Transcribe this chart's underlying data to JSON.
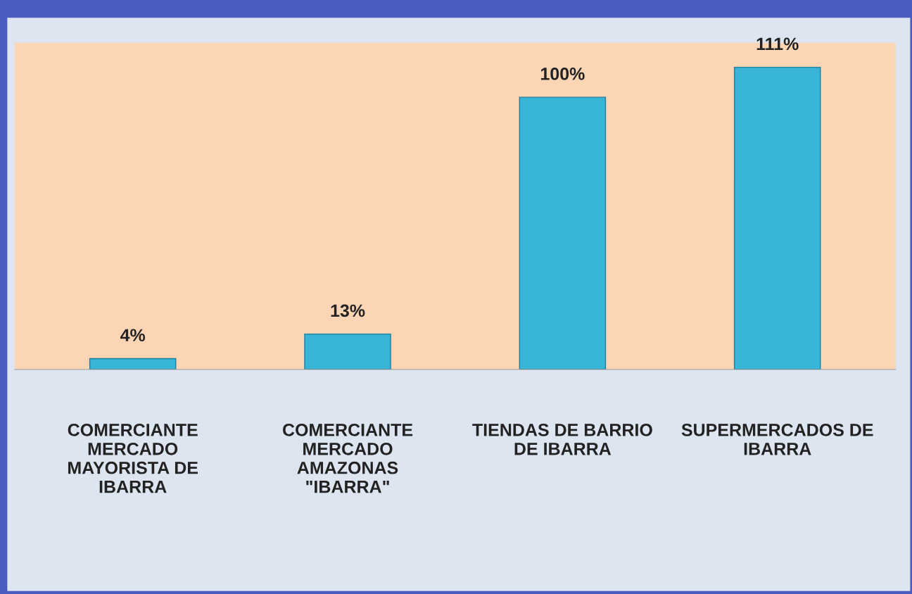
{
  "chart_data": {
    "type": "bar",
    "categories": [
      "COMERCIANTE\nMERCADO\nMAYORISTA DE\nIBARRA",
      "COMERCIANTE\nMERCADO\nAMAZONAS\n\"IBARRA\"",
      "TIENDAS DE BARRIO\nDE IBARRA",
      "SUPERMERCADOS DE\nIBARRA"
    ],
    "values": [
      4,
      13,
      100,
      111
    ],
    "value_labels": [
      "4%",
      "13%",
      "100%",
      "111%"
    ],
    "color": "#38b4d6",
    "ylim": [
      0,
      120
    ],
    "tick_labels": "x",
    "grid": false
  }
}
